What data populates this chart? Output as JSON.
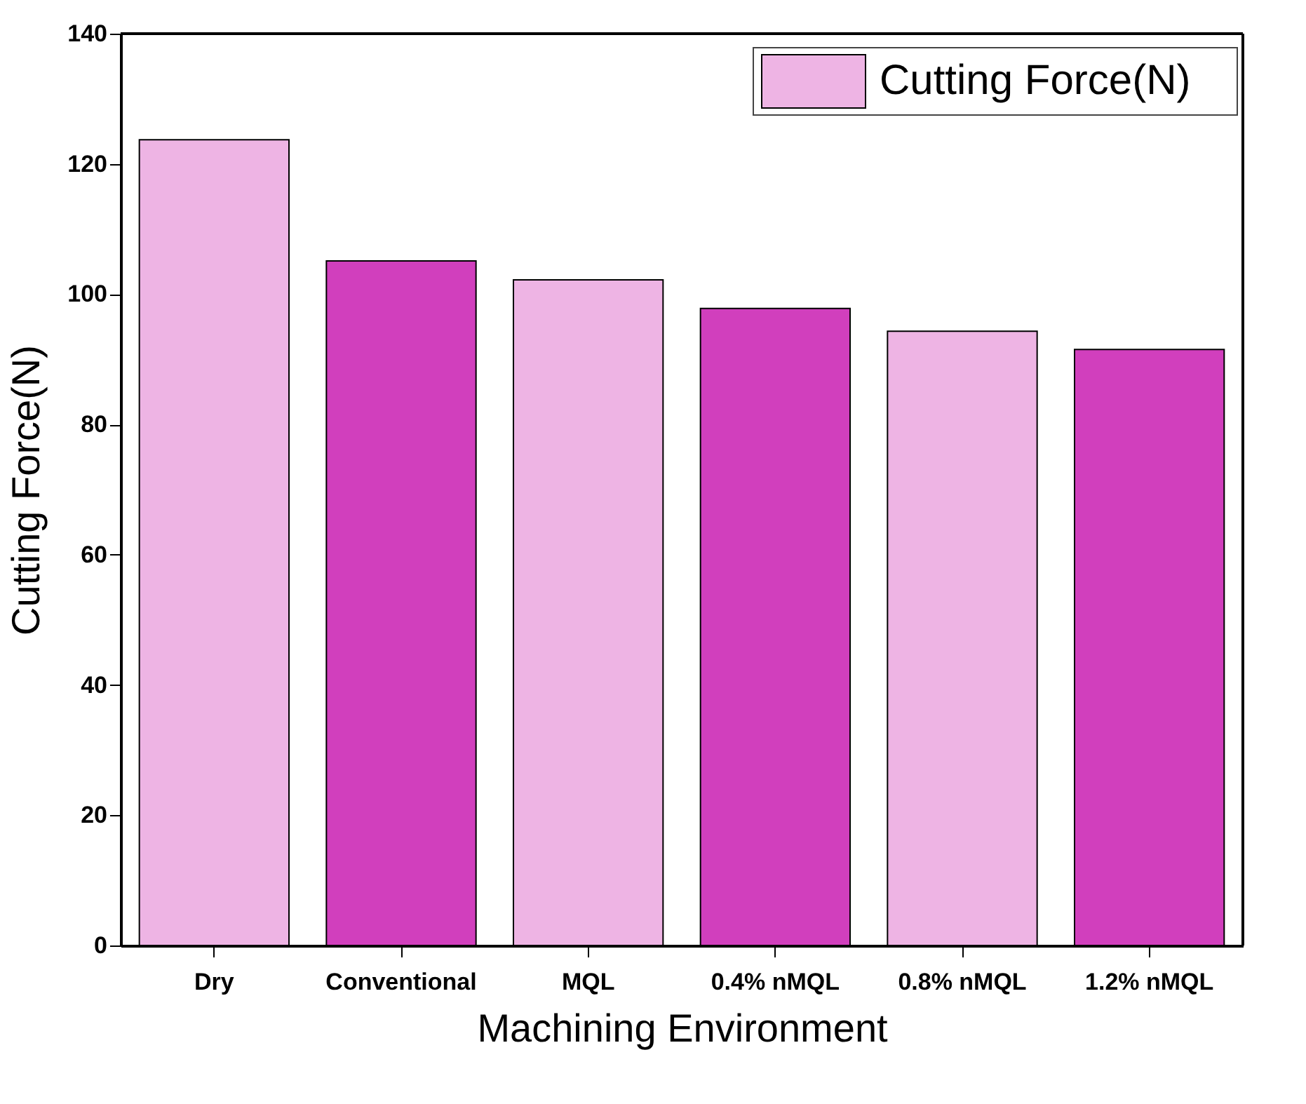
{
  "chart_data": {
    "type": "bar",
    "xlabel": "Machining Environment",
    "ylabel": "Cutting Force(N)",
    "categories": [
      "Dry",
      "Conventional",
      "MQL",
      "0.4% nMQL",
      "0.8% nMQL",
      "1.2% nMQL"
    ],
    "series": [
      {
        "name": "Cutting Force(N)",
        "values": [
          123.7,
          105.1,
          102.2,
          97.8,
          94.3,
          91.5
        ],
        "colors": [
          "#eeb4e4",
          "#d13fbd",
          "#eeb4e4",
          "#d13fbd",
          "#eeb4e4",
          "#d13fbd"
        ]
      }
    ],
    "ylim": [
      0,
      140
    ],
    "yticks": [
      0,
      20,
      40,
      60,
      80,
      100,
      120,
      140
    ],
    "grid": false,
    "legend": "top right"
  }
}
